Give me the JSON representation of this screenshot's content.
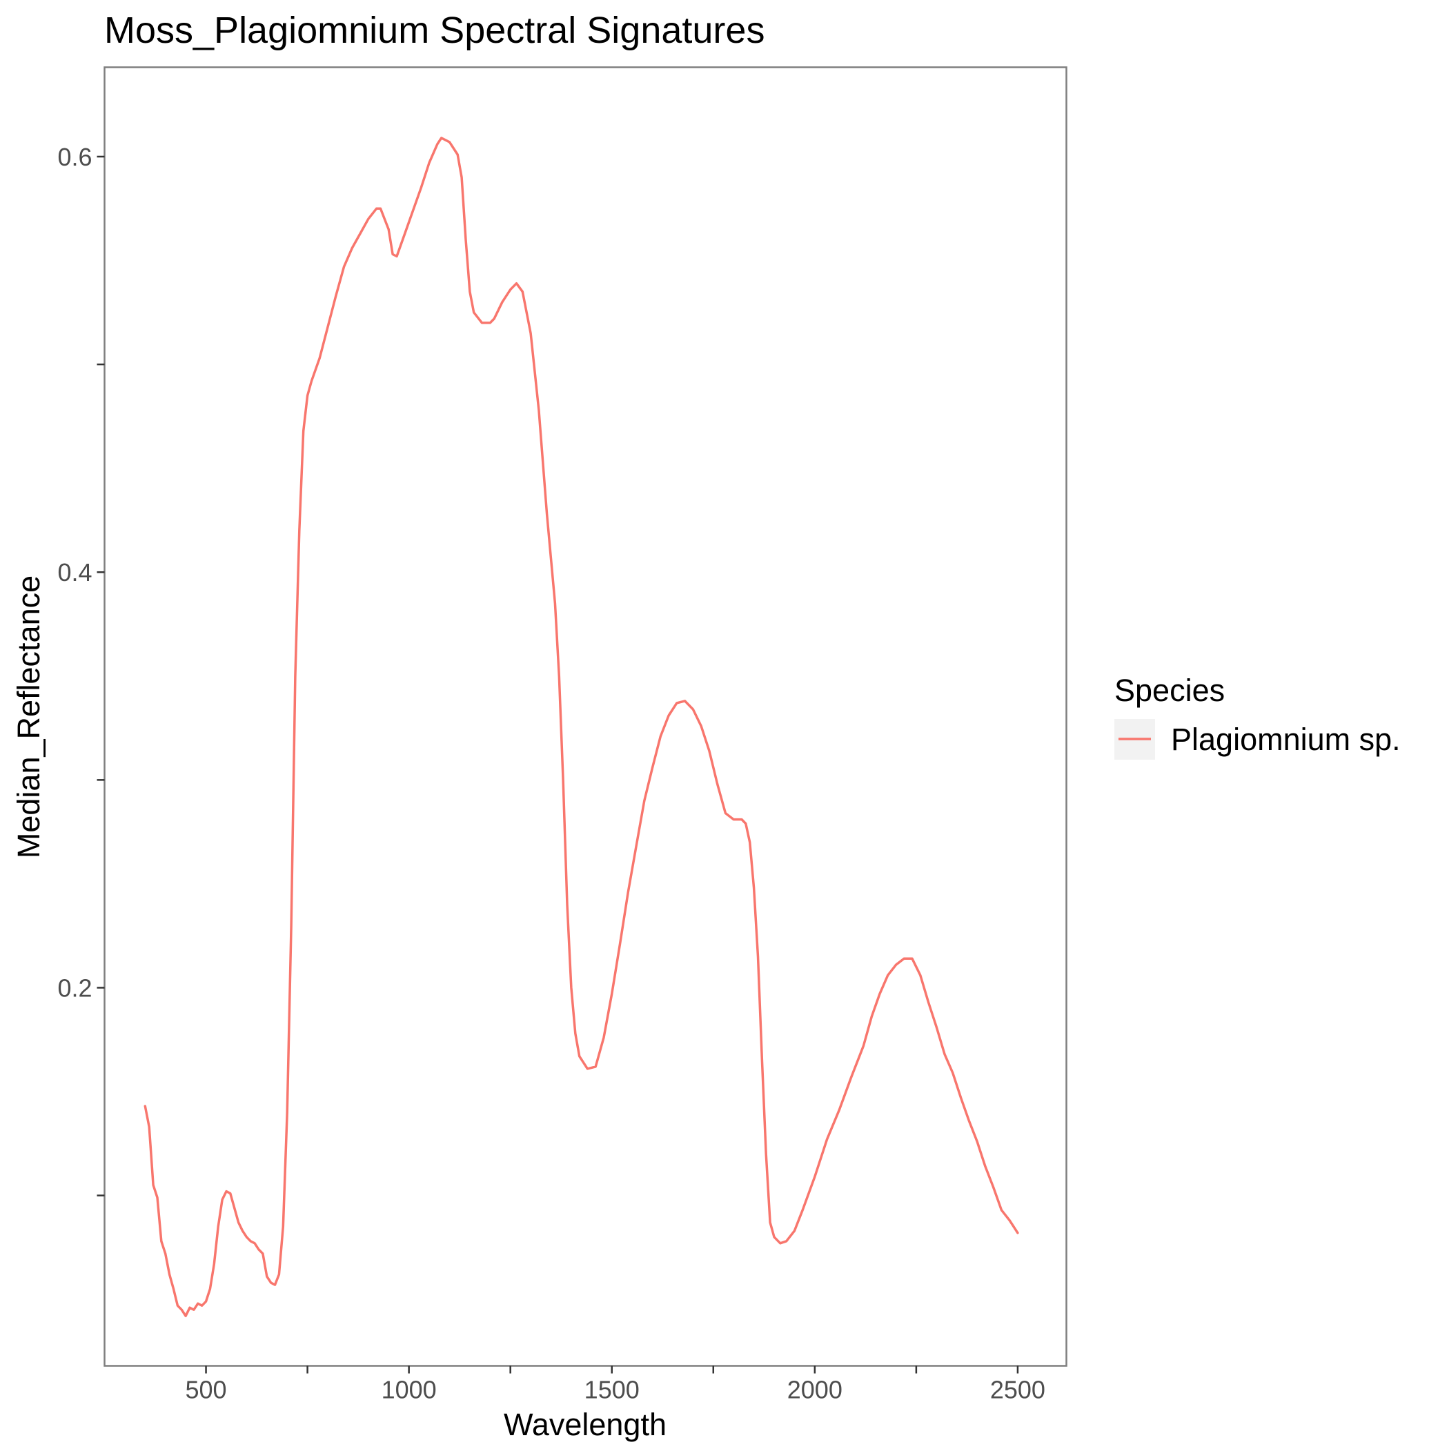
{
  "chart_data": {
    "type": "line",
    "title": "Moss_Plagiomnium Spectral Signatures",
    "xlabel": "Wavelength",
    "ylabel": "Median_Reflectance",
    "xlim": [
      250,
      2620
    ],
    "ylim": [
      0.018,
      0.643
    ],
    "x_ticks": [
      {
        "value": 500,
        "label": "500"
      },
      {
        "value": 1000,
        "label": "1000"
      },
      {
        "value": 1500,
        "label": "1500"
      },
      {
        "value": 2000,
        "label": "2000"
      },
      {
        "value": 2500,
        "label": "2500"
      }
    ],
    "y_ticks": [
      {
        "value": 0.2,
        "label": "0.2"
      },
      {
        "value": 0.4,
        "label": "0.4"
      },
      {
        "value": 0.6,
        "label": "0.6"
      }
    ],
    "minor_y": [
      0.1,
      0.3,
      0.5
    ],
    "minor_x": [
      750,
      1250,
      1750,
      2250
    ],
    "grid": false,
    "legend": {
      "title": "Species",
      "position": "right"
    },
    "series": [
      {
        "name": "Plagiomnium sp.",
        "color": "#F8766D",
        "points": [
          [
            350,
            0.143
          ],
          [
            360,
            0.133
          ],
          [
            370,
            0.105
          ],
          [
            380,
            0.099
          ],
          [
            390,
            0.078
          ],
          [
            400,
            0.072
          ],
          [
            410,
            0.062
          ],
          [
            420,
            0.055
          ],
          [
            430,
            0.047
          ],
          [
            440,
            0.045
          ],
          [
            450,
            0.042
          ],
          [
            460,
            0.046
          ],
          [
            470,
            0.045
          ],
          [
            480,
            0.048
          ],
          [
            490,
            0.047
          ],
          [
            500,
            0.049
          ],
          [
            510,
            0.055
          ],
          [
            520,
            0.067
          ],
          [
            530,
            0.085
          ],
          [
            540,
            0.098
          ],
          [
            550,
            0.102
          ],
          [
            560,
            0.101
          ],
          [
            570,
            0.094
          ],
          [
            580,
            0.087
          ],
          [
            590,
            0.083
          ],
          [
            600,
            0.08
          ],
          [
            610,
            0.078
          ],
          [
            620,
            0.077
          ],
          [
            630,
            0.074
          ],
          [
            640,
            0.072
          ],
          [
            650,
            0.061
          ],
          [
            660,
            0.058
          ],
          [
            670,
            0.057
          ],
          [
            680,
            0.062
          ],
          [
            690,
            0.085
          ],
          [
            700,
            0.14
          ],
          [
            710,
            0.23
          ],
          [
            720,
            0.35
          ],
          [
            730,
            0.42
          ],
          [
            740,
            0.468
          ],
          [
            750,
            0.485
          ],
          [
            760,
            0.492
          ],
          [
            780,
            0.503
          ],
          [
            800,
            0.518
          ],
          [
            820,
            0.533
          ],
          [
            840,
            0.547
          ],
          [
            860,
            0.556
          ],
          [
            880,
            0.563
          ],
          [
            900,
            0.57
          ],
          [
            920,
            0.575
          ],
          [
            930,
            0.575
          ],
          [
            940,
            0.57
          ],
          [
            950,
            0.565
          ],
          [
            960,
            0.553
          ],
          [
            970,
            0.552
          ],
          [
            990,
            0.563
          ],
          [
            1010,
            0.574
          ],
          [
            1030,
            0.585
          ],
          [
            1050,
            0.597
          ],
          [
            1070,
            0.606
          ],
          [
            1080,
            0.609
          ],
          [
            1100,
            0.607
          ],
          [
            1120,
            0.601
          ],
          [
            1130,
            0.59
          ],
          [
            1140,
            0.56
          ],
          [
            1150,
            0.535
          ],
          [
            1160,
            0.525
          ],
          [
            1180,
            0.52
          ],
          [
            1200,
            0.52
          ],
          [
            1210,
            0.522
          ],
          [
            1230,
            0.53
          ],
          [
            1250,
            0.536
          ],
          [
            1265,
            0.539
          ],
          [
            1280,
            0.535
          ],
          [
            1300,
            0.515
          ],
          [
            1320,
            0.478
          ],
          [
            1340,
            0.428
          ],
          [
            1360,
            0.385
          ],
          [
            1370,
            0.35
          ],
          [
            1380,
            0.3
          ],
          [
            1390,
            0.24
          ],
          [
            1400,
            0.2
          ],
          [
            1410,
            0.178
          ],
          [
            1420,
            0.167
          ],
          [
            1440,
            0.161
          ],
          [
            1460,
            0.162
          ],
          [
            1480,
            0.176
          ],
          [
            1500,
            0.197
          ],
          [
            1520,
            0.221
          ],
          [
            1540,
            0.246
          ],
          [
            1560,
            0.268
          ],
          [
            1580,
            0.29
          ],
          [
            1600,
            0.306
          ],
          [
            1620,
            0.321
          ],
          [
            1640,
            0.331
          ],
          [
            1660,
            0.337
          ],
          [
            1680,
            0.338
          ],
          [
            1700,
            0.334
          ],
          [
            1720,
            0.326
          ],
          [
            1740,
            0.314
          ],
          [
            1760,
            0.298
          ],
          [
            1780,
            0.284
          ],
          [
            1800,
            0.281
          ],
          [
            1820,
            0.281
          ],
          [
            1830,
            0.279
          ],
          [
            1840,
            0.27
          ],
          [
            1850,
            0.248
          ],
          [
            1860,
            0.215
          ],
          [
            1870,
            0.165
          ],
          [
            1880,
            0.12
          ],
          [
            1890,
            0.087
          ],
          [
            1900,
            0.08
          ],
          [
            1915,
            0.077
          ],
          [
            1930,
            0.078
          ],
          [
            1950,
            0.083
          ],
          [
            1970,
            0.093
          ],
          [
            2000,
            0.109
          ],
          [
            2030,
            0.127
          ],
          [
            2060,
            0.141
          ],
          [
            2090,
            0.157
          ],
          [
            2120,
            0.172
          ],
          [
            2140,
            0.186
          ],
          [
            2160,
            0.197
          ],
          [
            2180,
            0.206
          ],
          [
            2200,
            0.211
          ],
          [
            2220,
            0.214
          ],
          [
            2240,
            0.214
          ],
          [
            2260,
            0.206
          ],
          [
            2280,
            0.193
          ],
          [
            2300,
            0.181
          ],
          [
            2320,
            0.168
          ],
          [
            2340,
            0.159
          ],
          [
            2360,
            0.147
          ],
          [
            2380,
            0.136
          ],
          [
            2400,
            0.126
          ],
          [
            2420,
            0.114
          ],
          [
            2440,
            0.104
          ],
          [
            2460,
            0.093
          ],
          [
            2480,
            0.088
          ],
          [
            2500,
            0.082
          ]
        ]
      }
    ]
  }
}
